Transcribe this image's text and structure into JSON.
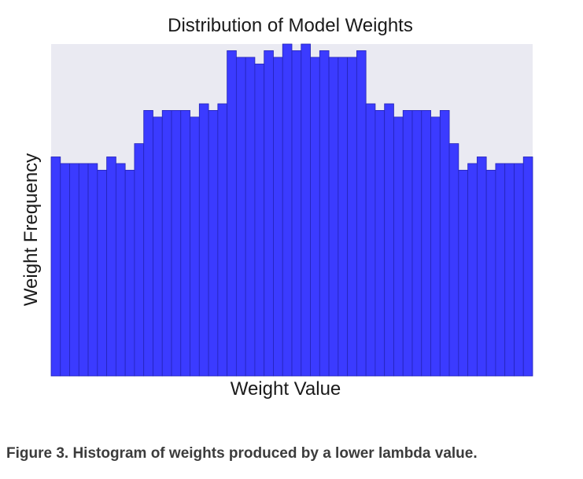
{
  "chart_data": {
    "type": "bar",
    "title": "Distribution of Model Weights",
    "xlabel": "Weight Value",
    "ylabel": "Weight Frequency",
    "ylim": [
      0,
      50
    ],
    "values": [
      33,
      32,
      32,
      32,
      32,
      31,
      33,
      32,
      31,
      35,
      40,
      39,
      40,
      40,
      40,
      39,
      41,
      40,
      41,
      49,
      48,
      48,
      47,
      49,
      48,
      50,
      49,
      50,
      48,
      49,
      48,
      48,
      48,
      49,
      41,
      40,
      41,
      39,
      40,
      40,
      40,
      39,
      40,
      35,
      31,
      32,
      33,
      31,
      32,
      32,
      32,
      33
    ],
    "grid": false,
    "colors": {
      "bar_fill": "#3b3bff",
      "bar_edge": "#2424b8",
      "plot_background": "#eaeaf2"
    }
  },
  "caption": "Figure 3. Histogram of weights produced by a lower lambda value."
}
